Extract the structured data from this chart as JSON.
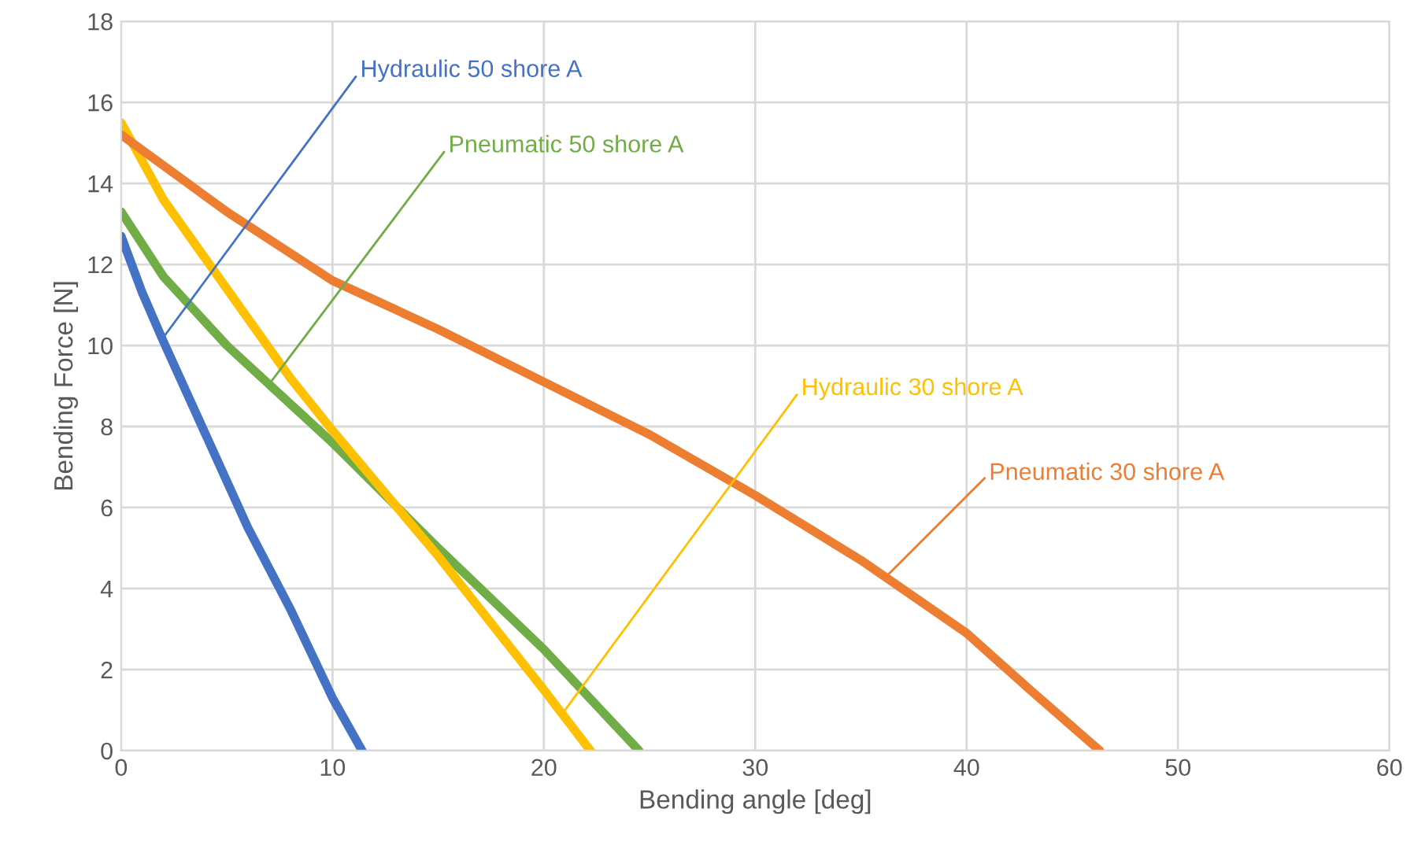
{
  "chart_data": {
    "type": "line",
    "xlabel": "Bending angle [deg]",
    "ylabel": "Bending Force [N]",
    "xlim": [
      0,
      60
    ],
    "xticks": [
      0,
      10,
      20,
      30,
      40,
      50,
      60
    ],
    "ylim": [
      0,
      18
    ],
    "yticks": [
      0,
      2,
      4,
      6,
      8,
      10,
      12,
      14,
      16,
      18
    ],
    "grid": true,
    "marker": "none",
    "line_style": "solid",
    "series": [
      {
        "color": "#4472c4",
        "x": [
          0,
          0.5,
          1,
          2,
          4,
          6,
          8,
          10,
          11.4
        ],
        "values": [
          12.7,
          12,
          11.3,
          10.1,
          7.8,
          5.5,
          3.5,
          1.3,
          0
        ]
      },
      {
        "color": "#70ad47",
        "x": [
          0,
          2,
          5,
          10,
          15,
          20,
          24.5
        ],
        "values": [
          13.3,
          11.7,
          10,
          7.6,
          5,
          2.5,
          0
        ]
      },
      {
        "color": "#ffc000",
        "x": [
          0,
          2,
          5,
          8,
          10,
          15,
          20,
          22.2
        ],
        "values": [
          15.5,
          13.6,
          11.4,
          9.2,
          7.9,
          4.8,
          1.5,
          0
        ]
      },
      {
        "color": "#ed7d31",
        "x": [
          0,
          5,
          10,
          15,
          20,
          25,
          30,
          35,
          40,
          43,
          46.3
        ],
        "values": [
          15.2,
          13.3,
          11.6,
          10.4,
          9.1,
          7.8,
          6.3,
          4.7,
          2.9,
          1.5,
          0
        ]
      }
    ],
    "annotations": [
      {
        "text": "Hydraulic 50 shore A",
        "x": 2,
        "y": 10.2
      },
      {
        "text": "Pneumatic 50 shore A",
        "x": 7,
        "y": 9.04
      },
      {
        "text": "Hydraulic 30 shore A",
        "x": 21,
        "y": 1
      },
      {
        "text": "Pneumatic 30 shore A",
        "x": 36.2,
        "y": 4.3
      }
    ]
  }
}
